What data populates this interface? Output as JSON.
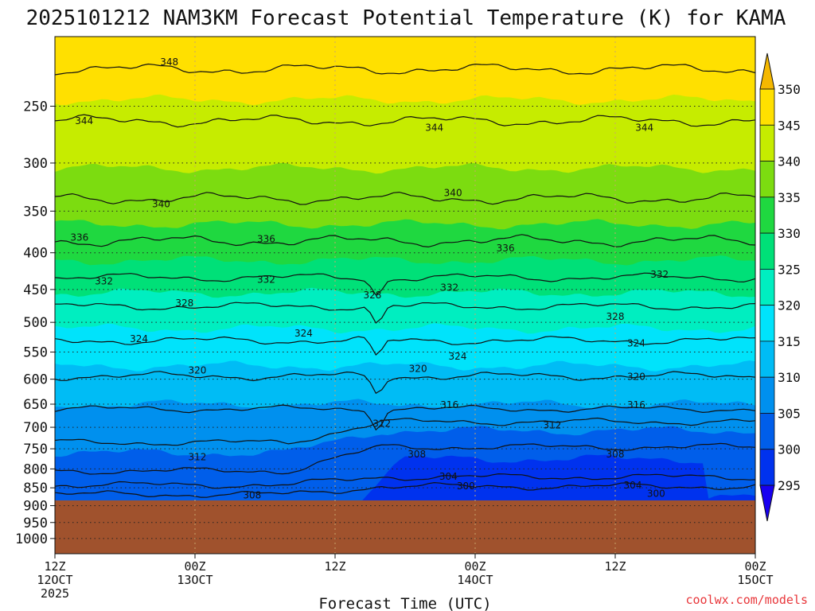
{
  "chart_data": {
    "type": "heatmap",
    "title": "2025101212 NAM3KM Forecast Potential Temperature (K) for KAMA",
    "xlabel": "Forecast Time (UTC)",
    "ylabel": "",
    "y_axis": {
      "scale": "log-pressure",
      "inverted": true,
      "range": [
        200,
        1050
      ],
      "ticks": [
        250,
        300,
        350,
        400,
        450,
        500,
        550,
        600,
        650,
        700,
        750,
        800,
        850,
        900,
        950,
        1000
      ]
    },
    "x_axis": {
      "ticks": [
        {
          "hour": 0,
          "line1": "12Z",
          "line2": "12OCT",
          "line3": "2025"
        },
        {
          "hour": 12,
          "line1": "00Z",
          "line2": "13OCT",
          "line3": ""
        },
        {
          "hour": 24,
          "line1": "12Z",
          "line2": "",
          "line3": ""
        },
        {
          "hour": 36,
          "line1": "00Z",
          "line2": "14OCT",
          "line3": ""
        },
        {
          "hour": 48,
          "line1": "12Z",
          "line2": "",
          "line3": ""
        },
        {
          "hour": 60,
          "line1": "00Z",
          "line2": "15OCT",
          "line3": ""
        }
      ],
      "range": [
        0,
        60
      ]
    },
    "grid": true,
    "surface_pressure_hpa": 885,
    "colorbar": {
      "location": "right",
      "levels": [
        295,
        300,
        305,
        310,
        315,
        320,
        325,
        330,
        335,
        340,
        345,
        350
      ],
      "colors": [
        "#1800f0",
        "#0032ee",
        "#005eea",
        "#0090ee",
        "#00bcf5",
        "#00e3fb",
        "#00eec0",
        "#00e078",
        "#1fd840",
        "#7cdc10",
        "#c6ec00",
        "#ffe000",
        "#f5b800"
      ],
      "labels": [
        "350",
        "345",
        "340",
        "335",
        "330",
        "325",
        "320",
        "315",
        "310",
        "305",
        "300",
        "295"
      ]
    },
    "contour_interval_K": 4,
    "contours": [
      {
        "value": 348,
        "p": 222
      },
      {
        "value": 344,
        "p": 262
      },
      {
        "value": 340,
        "p": 336
      },
      {
        "value": 336,
        "p": 385
      },
      {
        "value": 332,
        "p": 433
      },
      {
        "value": 328,
        "p": 475
      },
      {
        "value": 324,
        "p": 530
      },
      {
        "value": 320,
        "p": 594
      },
      {
        "value": 316,
        "p": 660
      },
      {
        "value": 312,
        "p": 735
      },
      {
        "value": 308,
        "p": 805
      },
      {
        "value": 304,
        "p": 842
      },
      {
        "value": 300,
        "p": 868
      }
    ],
    "contour_labels": [
      {
        "text": "348",
        "hour": 9.8,
        "p": 217
      },
      {
        "text": "344",
        "hour": 2.5,
        "p": 262
      },
      {
        "text": "344",
        "hour": 32.5,
        "p": 268
      },
      {
        "text": "344",
        "hour": 50.5,
        "p": 268
      },
      {
        "text": "340",
        "hour": 9.1,
        "p": 342
      },
      {
        "text": "340",
        "hour": 34.1,
        "p": 330
      },
      {
        "text": "336",
        "hour": 2.1,
        "p": 381
      },
      {
        "text": "336",
        "hour": 18.1,
        "p": 383
      },
      {
        "text": "336",
        "hour": 38.6,
        "p": 394
      },
      {
        "text": "332",
        "hour": 4.2,
        "p": 438
      },
      {
        "text": "332",
        "hour": 18.1,
        "p": 436
      },
      {
        "text": "332",
        "hour": 33.8,
        "p": 447
      },
      {
        "text": "332",
        "hour": 51.8,
        "p": 429
      },
      {
        "text": "328",
        "hour": 11.1,
        "p": 470
      },
      {
        "text": "328",
        "hour": 27.2,
        "p": 458
      },
      {
        "text": "328",
        "hour": 48.0,
        "p": 491
      },
      {
        "text": "324",
        "hour": 7.2,
        "p": 527
      },
      {
        "text": "324",
        "hour": 21.3,
        "p": 518
      },
      {
        "text": "324",
        "hour": 34.5,
        "p": 558
      },
      {
        "text": "324",
        "hour": 49.8,
        "p": 535
      },
      {
        "text": "320",
        "hour": 12.2,
        "p": 583
      },
      {
        "text": "320",
        "hour": 31.1,
        "p": 580
      },
      {
        "text": "320",
        "hour": 49.8,
        "p": 595
      },
      {
        "text": "316",
        "hour": 33.8,
        "p": 652
      },
      {
        "text": "316",
        "hour": 49.8,
        "p": 652
      },
      {
        "text": "312",
        "hour": 28.0,
        "p": 692
      },
      {
        "text": "312",
        "hour": 42.6,
        "p": 695
      },
      {
        "text": "312",
        "hour": 12.2,
        "p": 770
      },
      {
        "text": "308",
        "hour": 31.0,
        "p": 763
      },
      {
        "text": "308",
        "hour": 48.0,
        "p": 763
      },
      {
        "text": "308",
        "hour": 16.9,
        "p": 870
      },
      {
        "text": "304",
        "hour": 33.7,
        "p": 820
      },
      {
        "text": "304",
        "hour": 49.5,
        "p": 843
      },
      {
        "text": "300",
        "hour": 35.2,
        "p": 845
      },
      {
        "text": "300",
        "hour": 51.5,
        "p": 866
      }
    ]
  },
  "credit": "coolwx.com/models"
}
